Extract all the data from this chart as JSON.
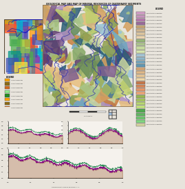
{
  "title_lines": [
    "GEOLOGICAL MAP AND MAP OF MINERAL RESOURCES OF QUATERNARY SEDIMENTS"
  ],
  "page_background": "#e8e4dc",
  "legend_colors": [
    "#d4a0c8",
    "#c896be",
    "#b87ab0",
    "#9b6a9b",
    "#c8a878",
    "#d4b890",
    "#e0c8a0",
    "#f0d8b0",
    "#98b878",
    "#b0c890",
    "#c8dca0",
    "#d8e8b0",
    "#a8c8d8",
    "#90b8cc",
    "#78a8c0",
    "#6098b4",
    "#d8a878",
    "#e0b888",
    "#e8c898",
    "#f0d8a8",
    "#c8784a",
    "#d8885a",
    "#e8986a",
    "#f0a87a",
    "#98b850",
    "#a8c860",
    "#b8d870",
    "#c8e880",
    "#50a850",
    "#60b860",
    "#70c870",
    "#80d880",
    "#d4d4a0"
  ],
  "map_border_color": "#8b7355",
  "colors_main": [
    "#6B8E5A",
    "#8BAB6E",
    "#A8C488",
    "#C8D4A0",
    "#D4A060",
    "#C88040",
    "#B86030",
    "#E8C080",
    "#98C4D8",
    "#70A8C0",
    "#50809A",
    "#306078",
    "#B090C0",
    "#806090",
    "#604070",
    "#90A050",
    "#A8B860",
    "#C0D070"
  ],
  "colors_geo": [
    "#4CAF50",
    "#8BC34A",
    "#FF9800",
    "#2196F3",
    "#9C27B0",
    "#F44336",
    "#00BCD4",
    "#FFEB3B",
    "#795548",
    "#607D8B",
    "#E91E63",
    "#3F51B5",
    "#009688",
    "#FF5722",
    "#9E9E9E"
  ],
  "left_legend_colors": [
    "#FFA500",
    "#8B6914",
    "#D2691E",
    "#90EE90",
    "#228B22"
  ],
  "cs_green": "#2E8B57",
  "cs_purple": "#800080",
  "cs_brown": "#8B4513"
}
